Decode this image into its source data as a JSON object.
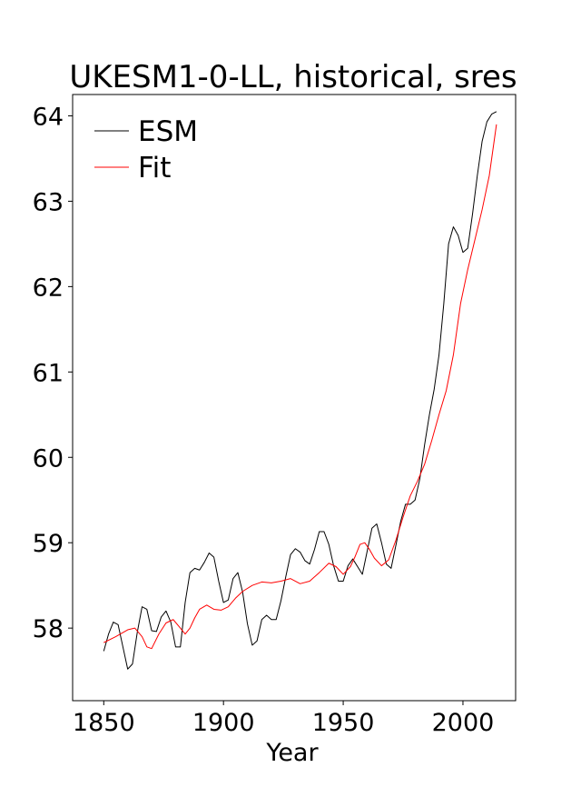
{
  "chart_data": {
    "type": "line",
    "title": "UKESM1-0-LL, historical, sres",
    "xlabel": "Year",
    "ylabel": "",
    "xlim": [
      1837,
      2022
    ],
    "ylim": [
      57.15,
      64.25
    ],
    "xticks": [
      1850,
      1900,
      1950,
      2000
    ],
    "yticks": [
      58,
      59,
      60,
      61,
      62,
      63,
      64
    ],
    "grid": false,
    "legend_position": "top-left",
    "series": [
      {
        "name": "ESM",
        "color": "#000000",
        "x": [
          1850,
          1852,
          1854,
          1856,
          1858,
          1860,
          1862,
          1864,
          1866,
          1868,
          1870,
          1872,
          1874,
          1876,
          1878,
          1880,
          1882,
          1884,
          1886,
          1888,
          1890,
          1892,
          1894,
          1896,
          1898,
          1900,
          1902,
          1904,
          1906,
          1908,
          1910,
          1912,
          1914,
          1916,
          1918,
          1920,
          1922,
          1924,
          1926,
          1928,
          1930,
          1932,
          1934,
          1936,
          1938,
          1940,
          1942,
          1944,
          1946,
          1948,
          1950,
          1952,
          1954,
          1956,
          1958,
          1960,
          1962,
          1964,
          1966,
          1968,
          1970,
          1972,
          1974,
          1976,
          1978,
          1980,
          1982,
          1984,
          1986,
          1988,
          1990,
          1992,
          1994,
          1996,
          1998,
          2000,
          2002,
          2004,
          2006,
          2008,
          2010,
          2012,
          2014
        ],
        "values": [
          57.73,
          57.93,
          58.07,
          58.04,
          57.78,
          57.52,
          57.58,
          57.95,
          58.25,
          58.22,
          57.97,
          57.96,
          58.13,
          58.2,
          58.07,
          57.78,
          57.78,
          58.3,
          58.65,
          58.7,
          58.68,
          58.77,
          58.88,
          58.83,
          58.55,
          58.3,
          58.33,
          58.58,
          58.65,
          58.42,
          58.05,
          57.8,
          57.85,
          58.1,
          58.15,
          58.1,
          58.1,
          58.32,
          58.6,
          58.86,
          58.93,
          58.89,
          58.79,
          58.75,
          58.92,
          59.13,
          59.13,
          58.98,
          58.73,
          58.55,
          58.55,
          58.73,
          58.81,
          58.72,
          58.63,
          58.9,
          59.17,
          59.22,
          59.0,
          58.75,
          58.7,
          58.97,
          59.25,
          59.45,
          59.45,
          59.5,
          59.75,
          60.15,
          60.5,
          60.8,
          61.2,
          61.8,
          62.5,
          62.7,
          62.6,
          62.4,
          62.45,
          62.85,
          63.3,
          63.7,
          63.93,
          64.02,
          64.05
        ]
      },
      {
        "name": "Fit",
        "color": "#ff0000",
        "x": [
          1850,
          1855,
          1860,
          1863,
          1866,
          1868,
          1870,
          1873,
          1876,
          1879,
          1882,
          1884,
          1886,
          1888,
          1890,
          1893,
          1896,
          1899,
          1902,
          1905,
          1908,
          1912,
          1916,
          1920,
          1924,
          1928,
          1932,
          1936,
          1940,
          1944,
          1947,
          1950,
          1953,
          1955,
          1957,
          1959,
          1961,
          1963,
          1966,
          1969,
          1972,
          1975,
          1978,
          1981,
          1984,
          1987,
          1990,
          1993,
          1996,
          1999,
          2002,
          2005,
          2008,
          2011,
          2014
        ],
        "values": [
          57.83,
          57.9,
          57.98,
          58.0,
          57.9,
          57.78,
          57.76,
          57.93,
          58.06,
          58.1,
          58.0,
          57.93,
          58.0,
          58.12,
          58.22,
          58.27,
          58.22,
          58.21,
          58.25,
          58.35,
          58.43,
          58.5,
          58.54,
          58.53,
          58.55,
          58.58,
          58.52,
          58.55,
          58.65,
          58.76,
          58.72,
          58.63,
          58.72,
          58.84,
          58.98,
          59.0,
          58.92,
          58.82,
          58.73,
          58.8,
          59.03,
          59.3,
          59.55,
          59.72,
          59.92,
          60.2,
          60.5,
          60.78,
          61.2,
          61.8,
          62.2,
          62.55,
          62.9,
          63.3,
          63.9
        ]
      }
    ]
  }
}
